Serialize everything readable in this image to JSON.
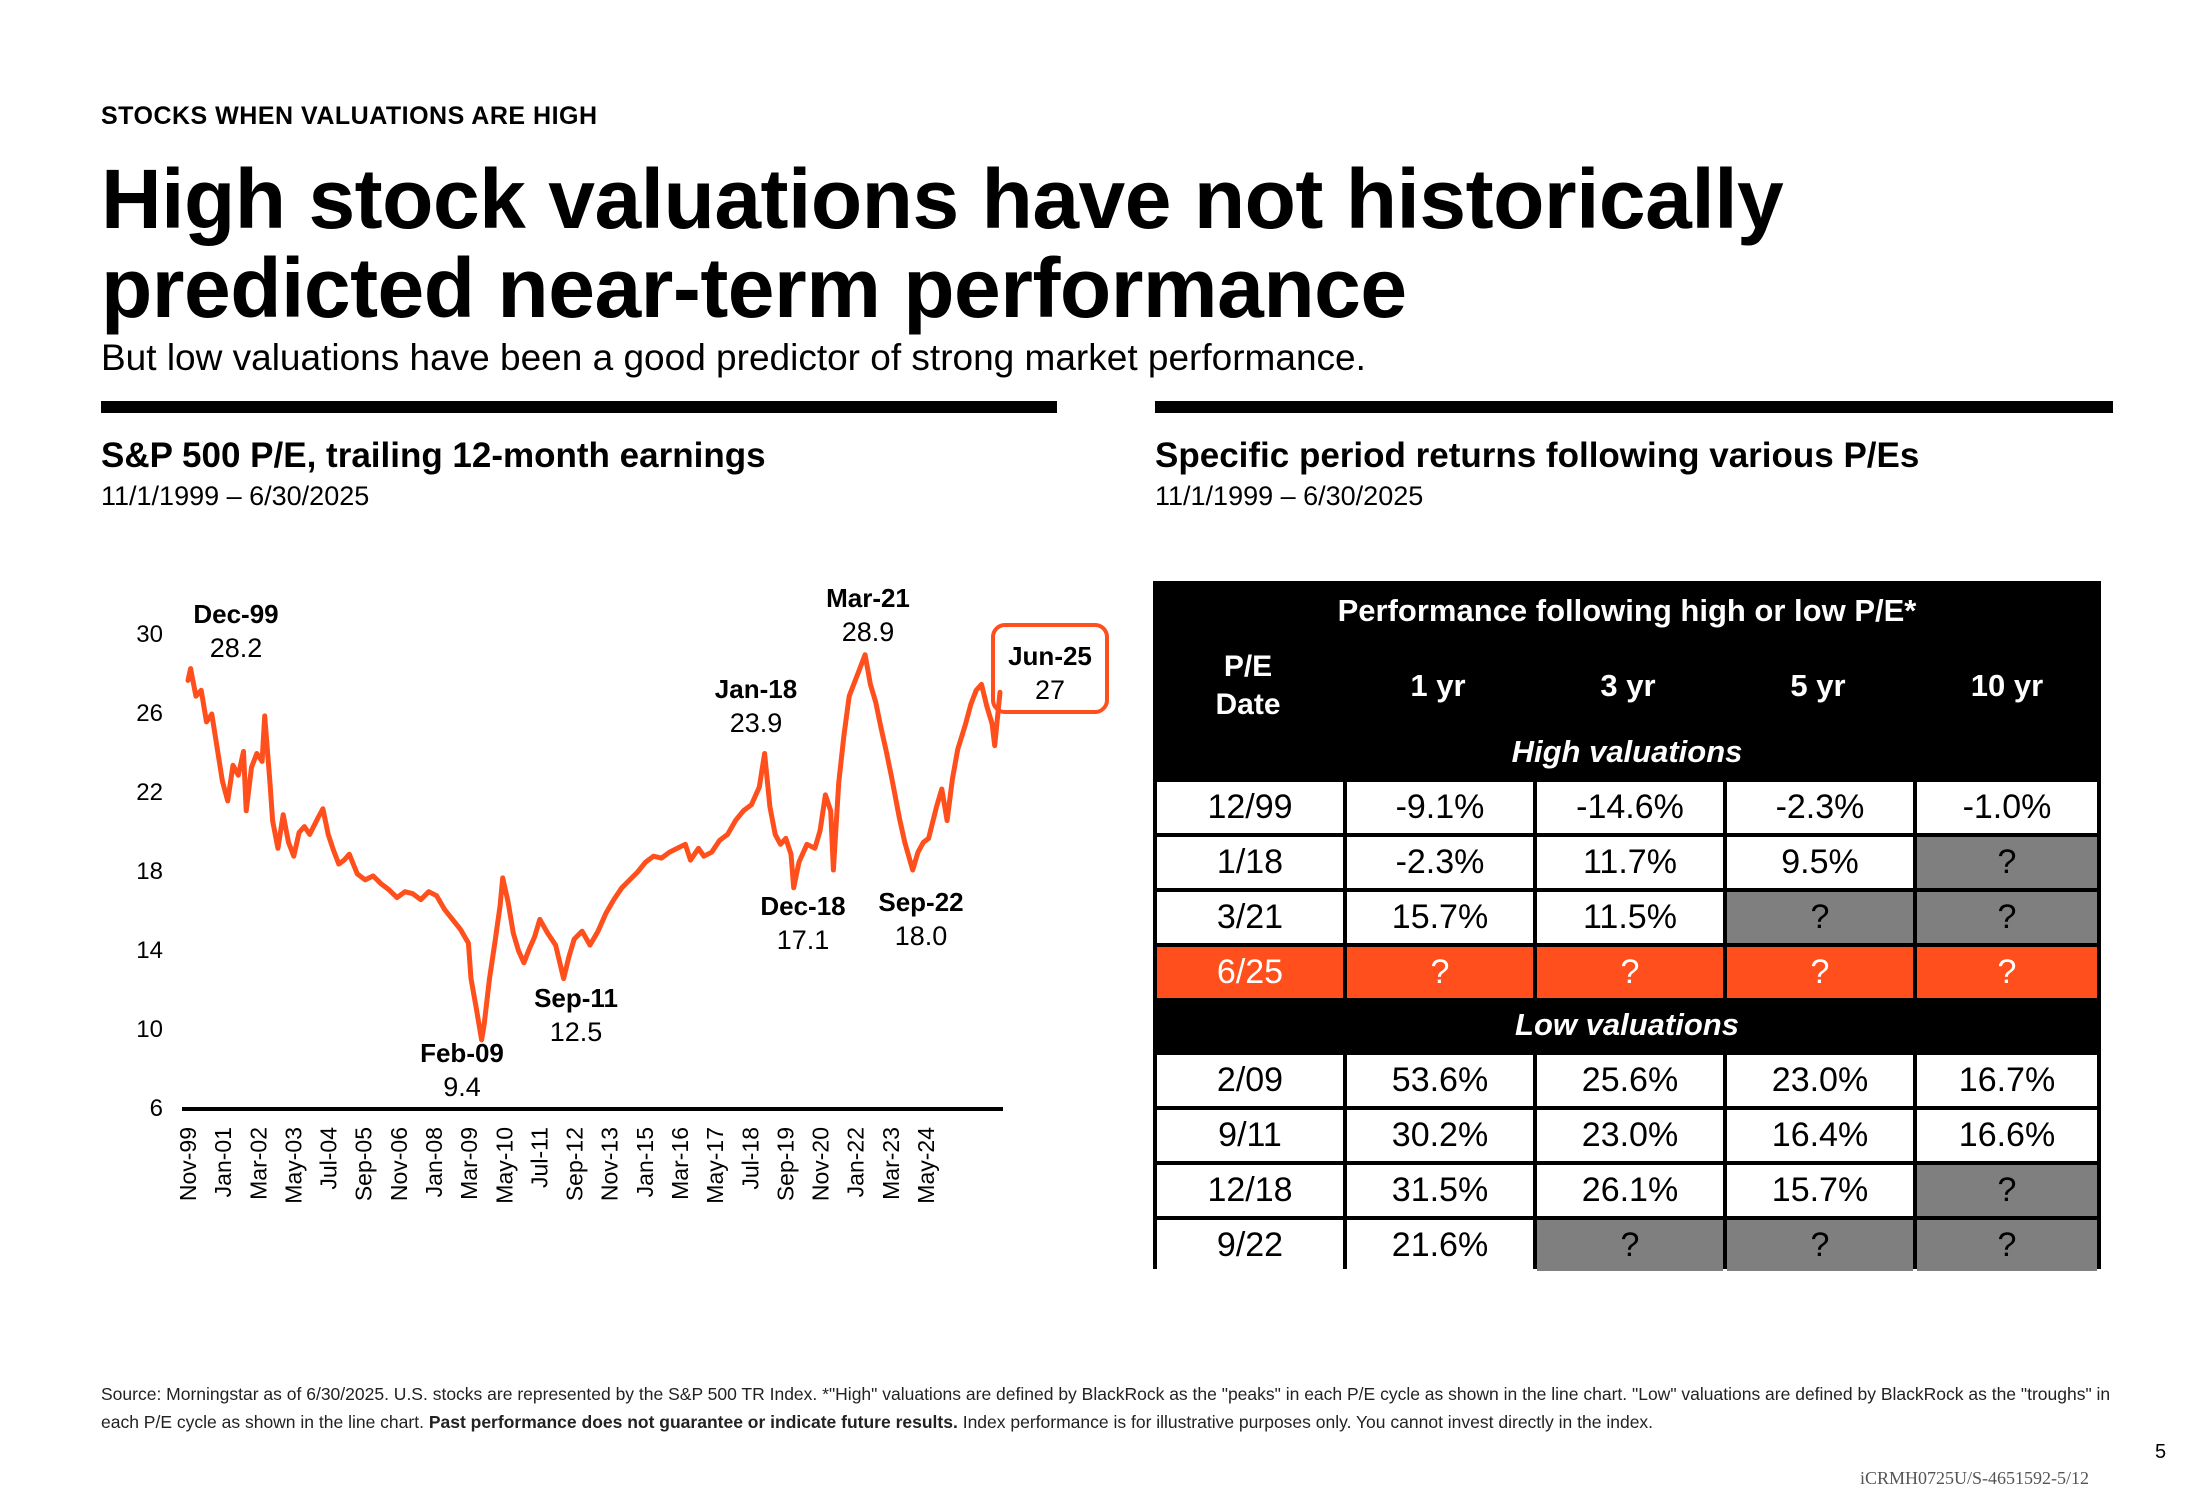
{
  "header": {
    "eyebrow": "STOCKS WHEN VALUATIONS ARE HIGH",
    "title_line1": "High stock valuations have not historically",
    "title_line2": "predicted near-term performance",
    "subtitle": "But low valuations have been a good predictor of strong market performance."
  },
  "left": {
    "title": "S&P 500 P/E, trailing 12-month earnings",
    "date_range": "11/1/1999 – 6/30/2025"
  },
  "right": {
    "title": "Specific period returns following various P/Es",
    "date_range": "11/1/1999 – 6/30/2025"
  },
  "chart_data": {
    "type": "line",
    "title": "S&P 500 P/E, trailing 12-month earnings",
    "subtitle": "11/1/1999 – 6/30/2025",
    "ylim": [
      6,
      30
    ],
    "yticks": [
      "6",
      "10",
      "14",
      "18",
      "22",
      "26",
      "30"
    ],
    "xticks": [
      "Nov-99",
      "Jan-01",
      "Mar-02",
      "May-03",
      "Jul-04",
      "Sep-05",
      "Nov-06",
      "Jan-08",
      "Mar-09",
      "May-10",
      "Jul-11",
      "Sep-12",
      "Nov-13",
      "Jan-15",
      "Mar-16",
      "May-17",
      "Jul-18",
      "Sep-19",
      "Nov-20",
      "Jan-22",
      "Mar-23",
      "May-24"
    ],
    "grid": false,
    "line_color": "#ff4f1c",
    "series": [
      {
        "values": [
          [
            "1999-11",
            27.6
          ],
          [
            "1999-12",
            28.2
          ],
          [
            "2000-02",
            26.8
          ],
          [
            "2000-04",
            27.1
          ],
          [
            "2000-06",
            25.5
          ],
          [
            "2000-08",
            25.9
          ],
          [
            "2000-10",
            24.2
          ],
          [
            "2000-12",
            22.5
          ],
          [
            "2001-02",
            21.5
          ],
          [
            "2001-04",
            23.3
          ],
          [
            "2001-06",
            22.8
          ],
          [
            "2001-08",
            24.0
          ],
          [
            "2001-09",
            21.0
          ],
          [
            "2001-11",
            23.2
          ],
          [
            "2002-01",
            23.9
          ],
          [
            "2002-03",
            23.5
          ],
          [
            "2002-04",
            25.8
          ],
          [
            "2002-06",
            22.4
          ],
          [
            "2002-07",
            20.5
          ],
          [
            "2002-09",
            19.1
          ],
          [
            "2002-11",
            20.8
          ],
          [
            "2003-01",
            19.4
          ],
          [
            "2003-03",
            18.7
          ],
          [
            "2003-05",
            19.9
          ],
          [
            "2003-07",
            20.2
          ],
          [
            "2003-09",
            19.8
          ],
          [
            "2003-12",
            20.6
          ],
          [
            "2004-02",
            21.1
          ],
          [
            "2004-04",
            19.8
          ],
          [
            "2004-06",
            19.0
          ],
          [
            "2004-08",
            18.3
          ],
          [
            "2004-10",
            18.5
          ],
          [
            "2004-12",
            18.8
          ],
          [
            "2005-03",
            17.8
          ],
          [
            "2005-06",
            17.5
          ],
          [
            "2005-09",
            17.7
          ],
          [
            "2005-12",
            17.3
          ],
          [
            "2006-03",
            17.0
          ],
          [
            "2006-06",
            16.6
          ],
          [
            "2006-09",
            16.9
          ],
          [
            "2006-12",
            16.8
          ],
          [
            "2007-03",
            16.5
          ],
          [
            "2007-06",
            16.9
          ],
          [
            "2007-09",
            16.7
          ],
          [
            "2007-12",
            16.0
          ],
          [
            "2008-03",
            15.5
          ],
          [
            "2008-06",
            15.0
          ],
          [
            "2008-09",
            14.3
          ],
          [
            "2008-10",
            12.5
          ],
          [
            "2008-12",
            11.0
          ],
          [
            "2009-02",
            9.4
          ],
          [
            "2009-03",
            10.2
          ],
          [
            "2009-05",
            12.5
          ],
          [
            "2009-07",
            14.3
          ],
          [
            "2009-09",
            16.2
          ],
          [
            "2009-10",
            17.6
          ],
          [
            "2009-12",
            16.4
          ],
          [
            "2010-02",
            14.8
          ],
          [
            "2010-04",
            13.9
          ],
          [
            "2010-06",
            13.3
          ],
          [
            "2010-08",
            14.0
          ],
          [
            "2010-10",
            14.6
          ],
          [
            "2010-12",
            15.5
          ],
          [
            "2011-03",
            14.8
          ],
          [
            "2011-06",
            14.2
          ],
          [
            "2011-09",
            12.5
          ],
          [
            "2011-11",
            13.6
          ],
          [
            "2012-01",
            14.5
          ],
          [
            "2012-04",
            14.9
          ],
          [
            "2012-07",
            14.2
          ],
          [
            "2012-10",
            14.9
          ],
          [
            "2013-01",
            15.8
          ],
          [
            "2013-04",
            16.5
          ],
          [
            "2013-07",
            17.1
          ],
          [
            "2013-10",
            17.5
          ],
          [
            "2014-01",
            17.9
          ],
          [
            "2014-04",
            18.4
          ],
          [
            "2014-07",
            18.7
          ],
          [
            "2014-10",
            18.6
          ],
          [
            "2015-01",
            18.9
          ],
          [
            "2015-04",
            19.1
          ],
          [
            "2015-07",
            19.3
          ],
          [
            "2015-09",
            18.5
          ],
          [
            "2015-12",
            19.1
          ],
          [
            "2016-02",
            18.7
          ],
          [
            "2016-05",
            18.9
          ],
          [
            "2016-08",
            19.5
          ],
          [
            "2016-11",
            19.8
          ],
          [
            "2017-02",
            20.5
          ],
          [
            "2017-05",
            21.0
          ],
          [
            "2017-08",
            21.3
          ],
          [
            "2017-11",
            22.2
          ],
          [
            "2018-01",
            23.9
          ],
          [
            "2018-03",
            21.2
          ],
          [
            "2018-05",
            19.8
          ],
          [
            "2018-07",
            19.3
          ],
          [
            "2018-09",
            19.6
          ],
          [
            "2018-11",
            18.8
          ],
          [
            "2018-12",
            17.1
          ],
          [
            "2019-02",
            18.4
          ],
          [
            "2019-05",
            19.3
          ],
          [
            "2019-08",
            19.1
          ],
          [
            "2019-10",
            20.0
          ],
          [
            "2019-12",
            21.8
          ],
          [
            "2020-02",
            21.0
          ],
          [
            "2020-03",
            18.0
          ],
          [
            "2020-05",
            22.4
          ],
          [
            "2020-07",
            24.8
          ],
          [
            "2020-09",
            26.8
          ],
          [
            "2020-11",
            27.5
          ],
          [
            "2021-01",
            28.2
          ],
          [
            "2021-03",
            28.9
          ],
          [
            "2021-05",
            27.4
          ],
          [
            "2021-07",
            26.5
          ],
          [
            "2021-09",
            25.2
          ],
          [
            "2021-11",
            24.0
          ],
          [
            "2022-01",
            22.7
          ],
          [
            "2022-04",
            20.6
          ],
          [
            "2022-06",
            19.4
          ],
          [
            "2022-09",
            18.0
          ],
          [
            "2022-11",
            18.9
          ],
          [
            "2023-01",
            19.4
          ],
          [
            "2023-03",
            19.6
          ],
          [
            "2023-06",
            21.2
          ],
          [
            "2023-08",
            22.1
          ],
          [
            "2023-10",
            20.5
          ],
          [
            "2023-12",
            22.6
          ],
          [
            "2024-02",
            24.1
          ],
          [
            "2024-05",
            25.4
          ],
          [
            "2024-07",
            26.4
          ],
          [
            "2024-09",
            27.1
          ],
          [
            "2024-11",
            27.4
          ],
          [
            "2025-01",
            26.3
          ],
          [
            "2025-03",
            25.4
          ],
          [
            "2025-04",
            24.3
          ],
          [
            "2025-06",
            27.0
          ]
        ]
      }
    ],
    "annotations": [
      {
        "date": "Dec-99",
        "value": "28.2"
      },
      {
        "date": "Feb-09",
        "value": "9.4"
      },
      {
        "date": "Sep-11",
        "value": "12.5"
      },
      {
        "date": "Jan-18",
        "value": "23.9"
      },
      {
        "date": "Dec-18",
        "value": "17.1"
      },
      {
        "date": "Mar-21",
        "value": "28.9"
      },
      {
        "date": "Sep-22",
        "value": "18.0"
      },
      {
        "date": "Jun-25",
        "value": "27",
        "highlight": true
      }
    ]
  },
  "table": {
    "title": "Performance following high or low P/E*",
    "col_headers": [
      "P/E\nDate",
      "1 yr",
      "3 yr",
      "5 yr",
      "10 yr"
    ],
    "pe_label_line1": "P/E",
    "pe_label_line2": "Date",
    "high_label": "High valuations",
    "low_label": "Low valuations",
    "high_rows": [
      {
        "date": "12/99",
        "cells": [
          "-9.1%",
          "-14.6%",
          "-2.3%",
          "-1.0%"
        ],
        "status": [
          "w",
          "w",
          "w",
          "w"
        ]
      },
      {
        "date": "1/18",
        "cells": [
          "-2.3%",
          "11.7%",
          "9.5%",
          "?"
        ],
        "status": [
          "w",
          "w",
          "w",
          "g"
        ]
      },
      {
        "date": "3/21",
        "cells": [
          "15.7%",
          "11.5%",
          "?",
          "?"
        ],
        "status": [
          "w",
          "w",
          "g",
          "g"
        ]
      },
      {
        "date": "6/25",
        "cells": [
          "?",
          "?",
          "?",
          "?"
        ],
        "status": [
          "o",
          "o",
          "o",
          "o"
        ],
        "highlight": true
      }
    ],
    "low_rows": [
      {
        "date": "2/09",
        "cells": [
          "53.6%",
          "25.6%",
          "23.0%",
          "16.7%"
        ],
        "status": [
          "w",
          "w",
          "w",
          "w"
        ]
      },
      {
        "date": "9/11",
        "cells": [
          "30.2%",
          "23.0%",
          "16.4%",
          "16.6%"
        ],
        "status": [
          "w",
          "w",
          "w",
          "w"
        ]
      },
      {
        "date": "12/18",
        "cells": [
          "31.5%",
          "26.1%",
          "15.7%",
          "?"
        ],
        "status": [
          "w",
          "w",
          "w",
          "g"
        ]
      },
      {
        "date": "9/22",
        "cells": [
          "21.6%",
          "?",
          "?",
          "?"
        ],
        "status": [
          "w",
          "g",
          "g",
          "g"
        ]
      }
    ]
  },
  "footer": {
    "source_a": "Source: Morningstar as of 6/30/2025. U.S. stocks are represented by the S&P 500 TR Index. *\"High\" valuations are defined by BlackRock as the \"peaks\" in each P/E cycle as shown in the line chart. \"Low\" valuations are defined by BlackRock as the \"troughs\" in each P/E cycle as shown in the line chart. ",
    "source_bold": "Past performance does not guarantee or indicate future results.",
    "source_b": " Index performance is for illustrative purposes only. You cannot invest directly in the index.",
    "page_number": "5",
    "doc_id": "iCRMH0725U/S-4651592-5/12"
  },
  "colors": {
    "accent": "#ff4f1c",
    "gray_cell": "#7f7f7f",
    "table_bg": "#000000"
  }
}
